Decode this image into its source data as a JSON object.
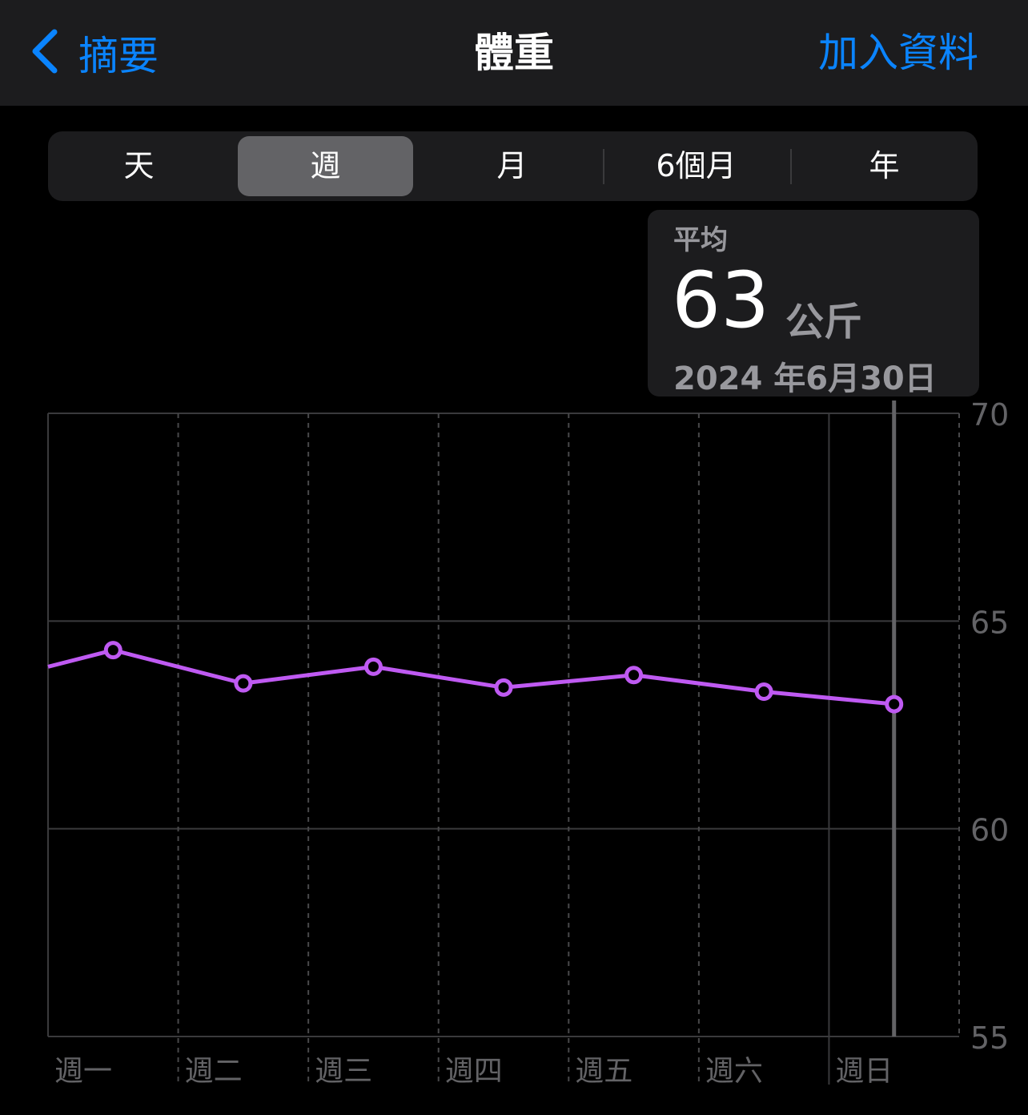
{
  "navbar": {
    "back_label": "摘要",
    "title": "體重",
    "action_label": "加入資料"
  },
  "segments": [
    {
      "label": "天",
      "selected": false
    },
    {
      "label": "週",
      "selected": true
    },
    {
      "label": "月",
      "selected": false
    },
    {
      "label": "6個月",
      "selected": false
    },
    {
      "label": "年",
      "selected": false
    }
  ],
  "tooltip": {
    "label": "平均",
    "value": "63",
    "unit": "公斤",
    "date": "2024 年6月30日"
  },
  "colors": {
    "accent": "#0a84ff",
    "series": "#bf5af2",
    "background": "#000000",
    "panel": "#1c1c1e"
  },
  "chart_data": {
    "type": "line",
    "categories": [
      "週一",
      "週二",
      "週三",
      "週四",
      "週五",
      "週六",
      "週日"
    ],
    "series": [
      {
        "values": [
          64.3,
          63.5,
          63.9,
          63.4,
          63.7,
          63.3,
          63.0
        ],
        "color": "#bf5af2"
      }
    ],
    "leading_value": 63.9,
    "ylim": [
      55,
      70
    ],
    "yticks": [
      70,
      65,
      60,
      55
    ],
    "grid": true,
    "selected_category": "週日"
  }
}
